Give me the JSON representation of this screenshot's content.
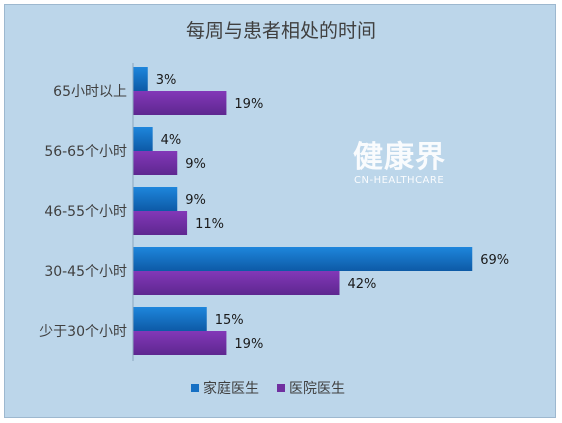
{
  "chart_data": {
    "type": "bar",
    "orientation": "horizontal",
    "title": "每周与患者相处的时间",
    "categories": [
      "65小时以上",
      "56-65个小时",
      "46-55个小时",
      "30-45个小时",
      "少于30个小时"
    ],
    "series": [
      {
        "name": "家庭医生",
        "values": [
          3,
          4,
          9,
          69,
          15
        ],
        "labels": [
          "3%",
          "4%",
          "9%",
          "69%",
          "15%"
        ],
        "color": "#1670c4"
      },
      {
        "name": "医院医生",
        "values": [
          19,
          9,
          11,
          42,
          19
        ],
        "labels": [
          "19%",
          "9%",
          "11%",
          "42%",
          "19%"
        ],
        "color": "#7030a0"
      }
    ],
    "xlim": [
      0,
      72
    ],
    "grid": false,
    "legend": "bottom"
  },
  "watermark": {
    "main": "健康界",
    "sub": "CN-HEALTHCARE"
  }
}
